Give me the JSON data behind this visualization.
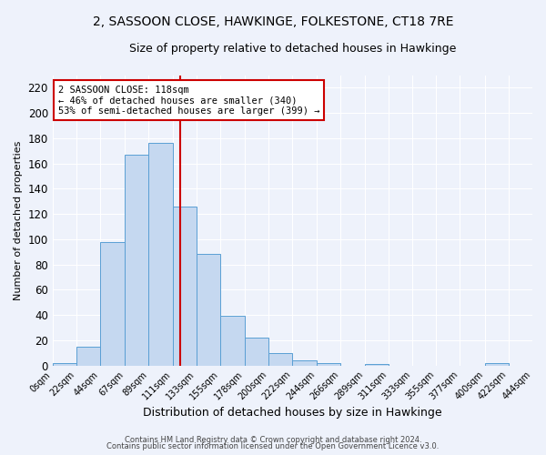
{
  "title": "2, SASSOON CLOSE, HAWKINGE, FOLKESTONE, CT18 7RE",
  "subtitle": "Size of property relative to detached houses in Hawkinge",
  "xlabel": "Distribution of detached houses by size in Hawkinge",
  "ylabel": "Number of detached properties",
  "bar_color": "#c5d8f0",
  "bar_edge_color": "#5a9fd4",
  "bin_edges": [
    0,
    22,
    44,
    67,
    89,
    111,
    133,
    155,
    178,
    200,
    222,
    244,
    266,
    289,
    311,
    333,
    355,
    377,
    400,
    422,
    444
  ],
  "bar_heights": [
    2,
    15,
    98,
    167,
    176,
    126,
    88,
    39,
    22,
    10,
    4,
    2,
    0,
    1,
    0,
    0,
    0,
    0,
    2,
    0
  ],
  "property_size": 118,
  "vline_color": "#cc0000",
  "annotation_text": "2 SASSOON CLOSE: 118sqm\n← 46% of detached houses are smaller (340)\n53% of semi-detached houses are larger (399) →",
  "annotation_box_color": "#ffffff",
  "annotation_border_color": "#cc0000",
  "ylim": [
    0,
    230
  ],
  "yticks": [
    0,
    20,
    40,
    60,
    80,
    100,
    120,
    140,
    160,
    180,
    200,
    220
  ],
  "footer_line1": "Contains HM Land Registry data © Crown copyright and database right 2024.",
  "footer_line2": "Contains public sector information licensed under the Open Government Licence v3.0.",
  "background_color": "#eef2fb",
  "grid_color": "#ffffff",
  "tick_label_fontsize": 7,
  "title_fontsize": 10,
  "subtitle_fontsize": 9,
  "ylabel_fontsize": 8,
  "xlabel_fontsize": 9
}
